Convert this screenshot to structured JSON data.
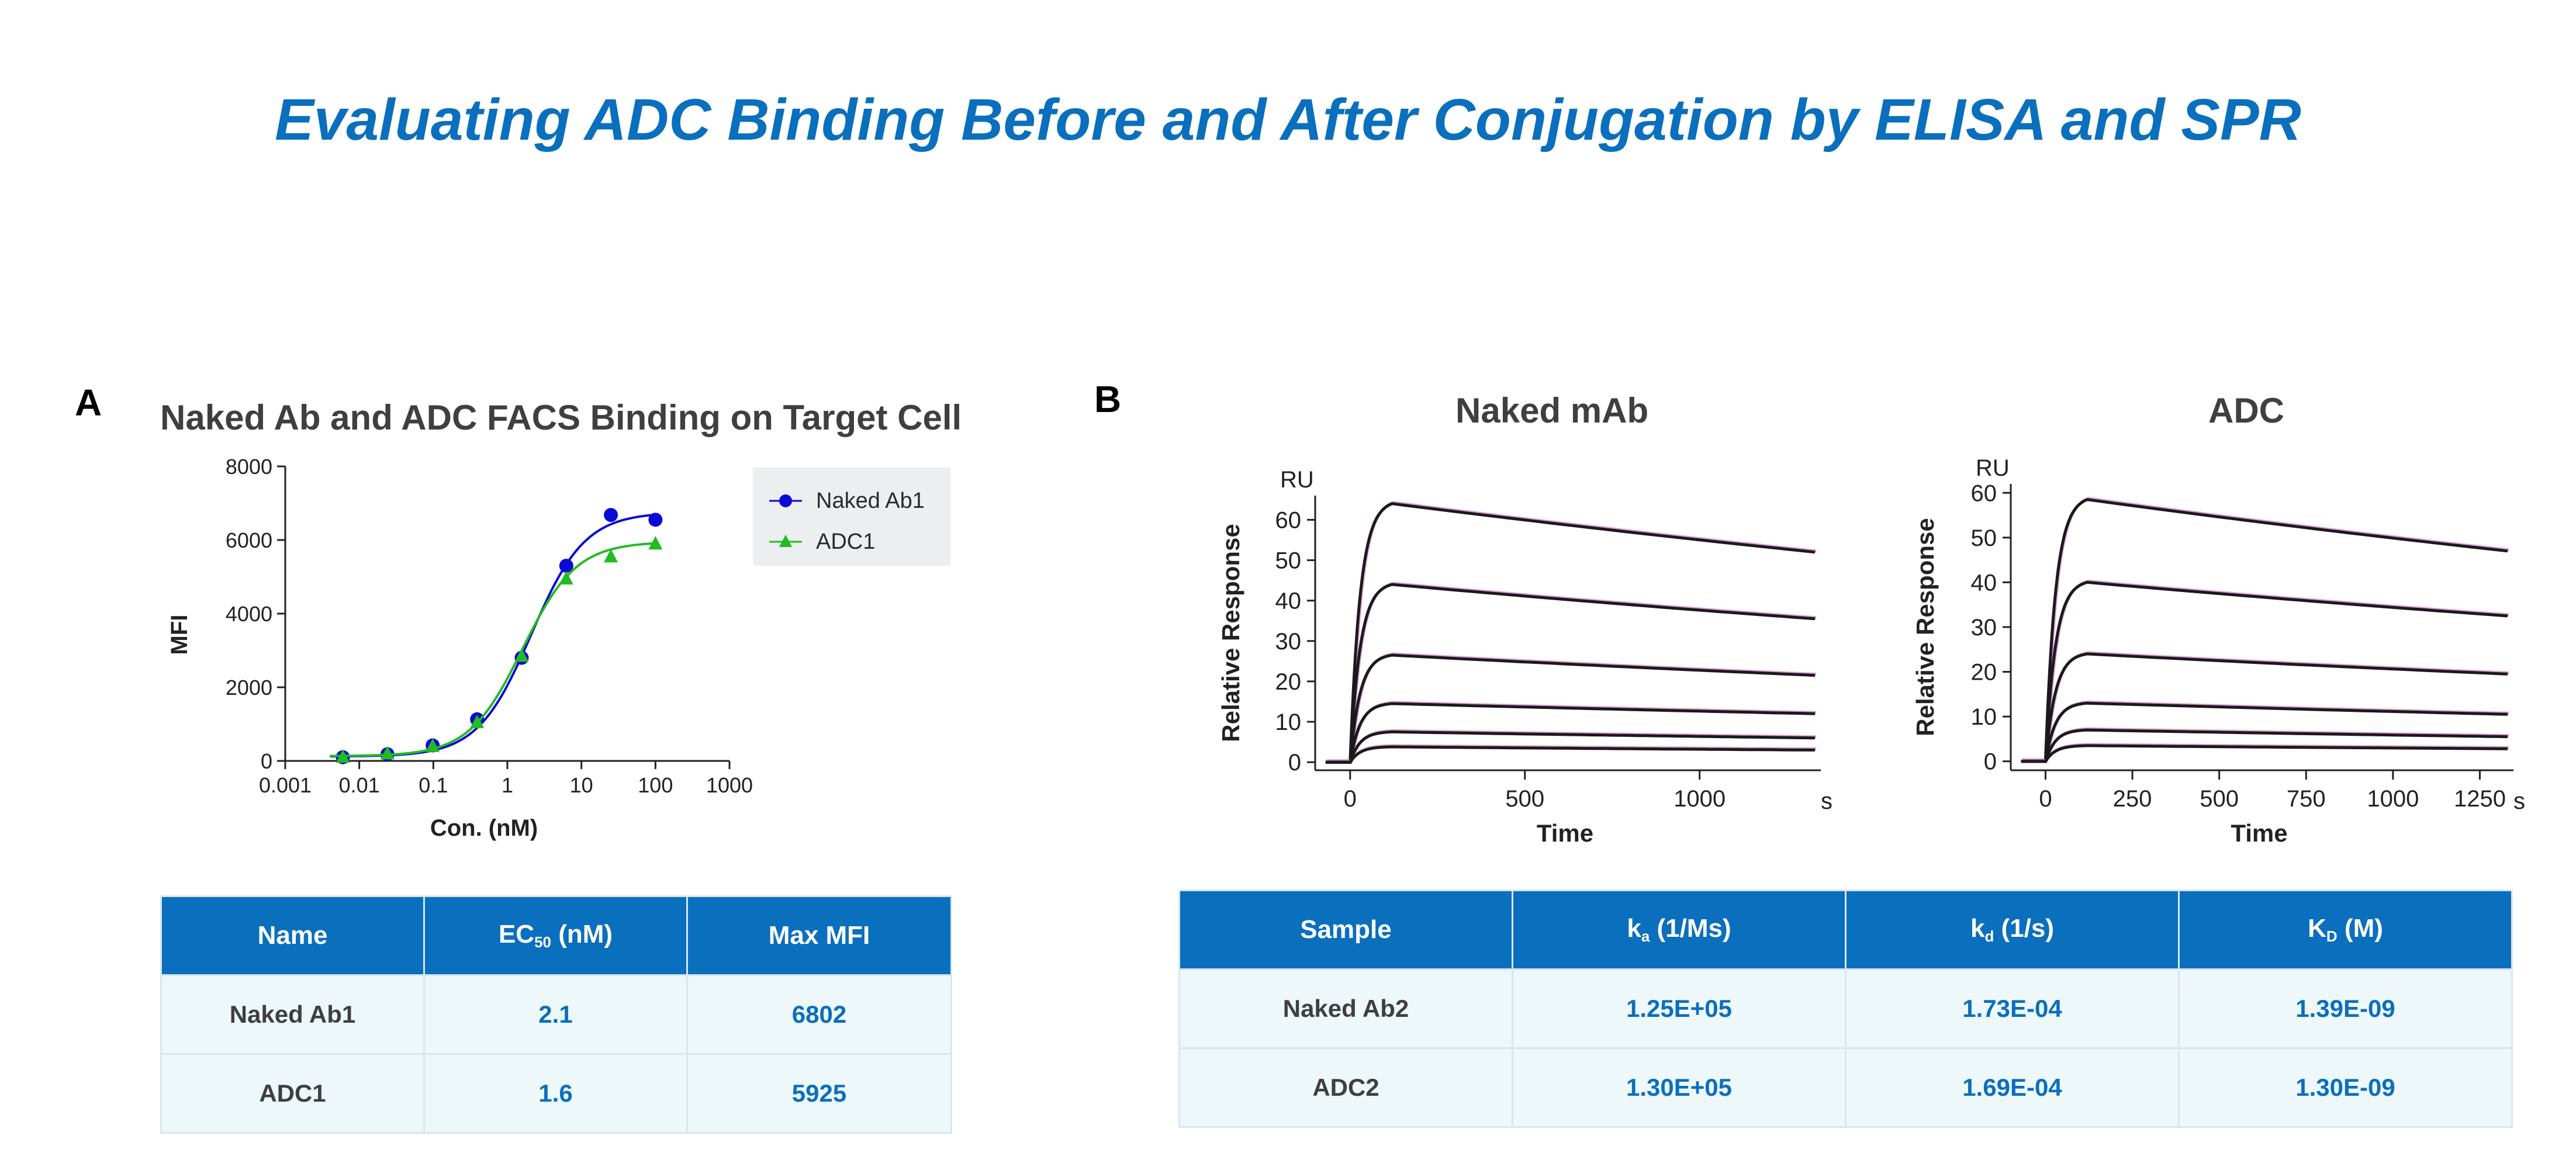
{
  "title": "Evaluating ADC Binding Before and After Conjugation by ELISA and SPR",
  "panel_a": {
    "letter": "A",
    "table": {
      "headers": [
        "Name",
        "EC50 (nM)",
        "Max MFI"
      ],
      "ec50_main": "EC",
      "ec50_sub": "50",
      "ec50_rest": " (nM)",
      "rows": [
        [
          "Naked Ab1",
          "2.1",
          "6802"
        ],
        [
          "ADC1",
          "1.6",
          "5925"
        ]
      ]
    }
  },
  "panel_b": {
    "letter": "B",
    "table": {
      "headers": [
        "Sample",
        "ka (1/Ms)",
        "kd (1/s)",
        "KD (M)"
      ],
      "h1_main": "k",
      "h1_sub": "a",
      "h1_rest": " (1/Ms)",
      "h2_main": "k",
      "h2_sub": "d",
      "h2_rest": " (1/s)",
      "h3_main": "K",
      "h3_sub": "D",
      "h3_rest": " (M)",
      "rows": [
        [
          "Naked Ab2",
          "1.25E+05",
          "1.73E-04",
          "1.39E-09"
        ],
        [
          "ADC2",
          "1.30E+05",
          "1.69E-04",
          "1.30E-09"
        ]
      ]
    }
  },
  "chart_data": [
    {
      "type": "scatter",
      "title": "Naked Ab and ADC FACS Binding on Target Cell",
      "xlabel": "Con. (nM)",
      "ylabel": "MFI",
      "xscale": "log",
      "xlim": [
        0.001,
        1000
      ],
      "ylim": [
        0,
        8000
      ],
      "x_ticks": [
        0.001,
        0.01,
        0.1,
        1,
        10,
        100,
        1000
      ],
      "x_tick_labels": [
        "0.001",
        "0.01",
        "0.1",
        "1",
        "10",
        "100",
        "1000"
      ],
      "y_ticks": [
        0,
        2000,
        4000,
        6000,
        8000
      ],
      "y_tick_labels": [
        "0",
        "2000",
        "4000",
        "6000",
        "8000"
      ],
      "legend_position": "top-right",
      "series": [
        {
          "name": "Naked Ab1",
          "color": "#0a0ad6",
          "marker": "circle",
          "x": [
            0.006,
            0.024,
            0.098,
            0.39,
            1.56,
            6.25,
            25,
            100
          ],
          "y": [
            100,
            180,
            420,
            1130,
            2800,
            5300,
            6680,
            6550
          ],
          "fit": {
            "bottom": 120,
            "top": 6750,
            "ec50": 2.1,
            "hill": 1.2
          }
        },
        {
          "name": "ADC1",
          "color": "#22bb22",
          "marker": "triangle",
          "x": [
            0.006,
            0.024,
            0.098,
            0.39,
            1.56,
            6.25,
            25,
            100
          ],
          "y": [
            110,
            200,
            400,
            1050,
            2850,
            4950,
            5550,
            5900
          ],
          "fit": {
            "bottom": 130,
            "top": 5950,
            "ec50": 1.6,
            "hill": 1.2
          }
        }
      ]
    },
    {
      "type": "line",
      "title": "Naked mAb",
      "xlabel": "Time",
      "ylabel": "Relative Response",
      "x_unit": "s",
      "y_unit": "RU",
      "xlim": [
        -100,
        1330
      ],
      "ylim": [
        -2,
        66
      ],
      "x_ticks": [
        0,
        500,
        1000
      ],
      "x_tick_labels": [
        "0",
        "500",
        "1000"
      ],
      "y_ticks": [
        0,
        10,
        20,
        30,
        40,
        50,
        60
      ],
      "y_tick_labels": [
        "0",
        "10",
        "20",
        "30",
        "40",
        "50",
        "60"
      ],
      "association_start": 0,
      "dissociation_start": 120,
      "end_time": 1330,
      "series": [
        {
          "peak": 64,
          "end": 52
        },
        {
          "peak": 44,
          "end": 35.5
        },
        {
          "peak": 26.5,
          "end": 21.5
        },
        {
          "peak": 14.5,
          "end": 12
        },
        {
          "peak": 7.5,
          "end": 6
        },
        {
          "peak": 3.8,
          "end": 3
        }
      ]
    },
    {
      "type": "line",
      "title": "ADC",
      "xlabel": "Time",
      "ylabel": "Relative Response",
      "x_unit": "s",
      "y_unit": "RU",
      "xlim": [
        -100,
        1330
      ],
      "ylim": [
        -2,
        62
      ],
      "x_ticks": [
        0,
        250,
        500,
        750,
        1000,
        1250
      ],
      "x_tick_labels": [
        "0",
        "250",
        "500",
        "750",
        "1000",
        "1250"
      ],
      "y_ticks": [
        0,
        10,
        20,
        30,
        40,
        50,
        60
      ],
      "y_tick_labels": [
        "0",
        "10",
        "20",
        "30",
        "40",
        "50",
        "60"
      ],
      "association_start": 0,
      "dissociation_start": 120,
      "end_time": 1330,
      "series": [
        {
          "peak": 58.5,
          "end": 47
        },
        {
          "peak": 40,
          "end": 32.5
        },
        {
          "peak": 24,
          "end": 19.5
        },
        {
          "peak": 13,
          "end": 10.5
        },
        {
          "peak": 7,
          "end": 5.5
        },
        {
          "peak": 3.5,
          "end": 2.8
        }
      ]
    }
  ]
}
